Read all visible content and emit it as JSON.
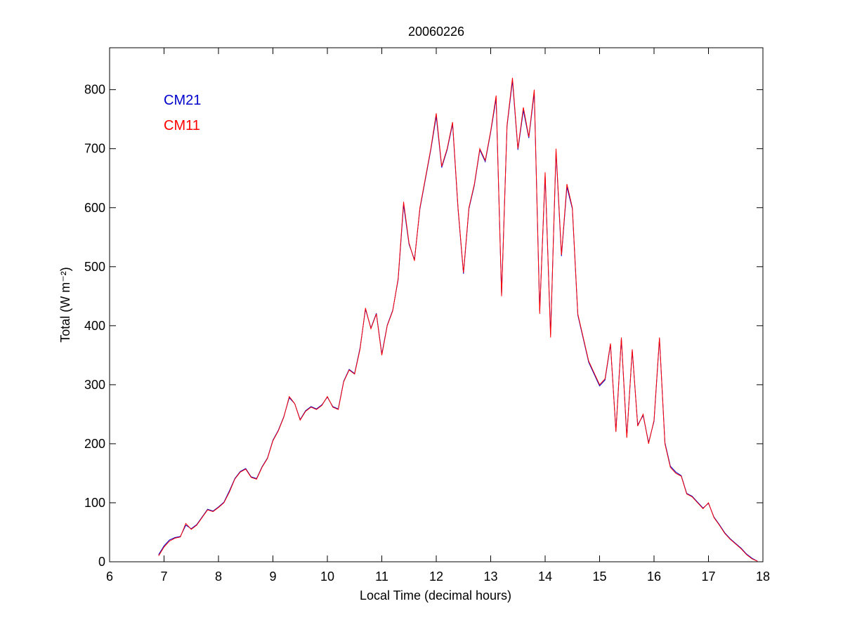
{
  "chart_data": {
    "type": "line",
    "title": "20060226",
    "xlabel": "Local Time (decimal hours)",
    "ylabel": "Total (W m⁻²)",
    "x": [
      6.9,
      7.0,
      7.1,
      7.2,
      7.3,
      7.4,
      7.5,
      7.6,
      7.7,
      7.8,
      7.9,
      8.0,
      8.1,
      8.2,
      8.3,
      8.4,
      8.5,
      8.6,
      8.7,
      8.8,
      8.9,
      9.0,
      9.1,
      9.2,
      9.3,
      9.4,
      9.5,
      9.6,
      9.7,
      9.8,
      9.9,
      10.0,
      10.1,
      10.2,
      10.3,
      10.4,
      10.5,
      10.6,
      10.7,
      10.8,
      10.9,
      11.0,
      11.1,
      11.2,
      11.3,
      11.4,
      11.5,
      11.6,
      11.7,
      11.8,
      11.9,
      12.0,
      12.1,
      12.2,
      12.3,
      12.4,
      12.5,
      12.6,
      12.7,
      12.8,
      12.9,
      13.0,
      13.1,
      13.2,
      13.3,
      13.4,
      13.5,
      13.6,
      13.7,
      13.8,
      13.9,
      14.0,
      14.1,
      14.2,
      14.3,
      14.4,
      14.5,
      14.6,
      14.7,
      14.8,
      14.9,
      15.0,
      15.1,
      15.2,
      15.3,
      15.4,
      15.5,
      15.6,
      15.7,
      15.8,
      15.9,
      16.0,
      16.1,
      16.2,
      16.3,
      16.4,
      16.5,
      16.6,
      16.7,
      16.8,
      16.9,
      17.0,
      17.1,
      17.2,
      17.3,
      17.4,
      17.5,
      17.6,
      17.7,
      17.8,
      17.9
    ],
    "series": [
      {
        "name": "CM21",
        "color": "#0000cc",
        "values": [
          12,
          27,
          37,
          41,
          43,
          62,
          56,
          63,
          76,
          89,
          86,
          93,
          101,
          120,
          141,
          153,
          158,
          144,
          141,
          161,
          176,
          206,
          223,
          246,
          278,
          268,
          241,
          256,
          263,
          259,
          266,
          279,
          263,
          259,
          306,
          326,
          319,
          362,
          428,
          396,
          421,
          352,
          401,
          426,
          478,
          605,
          538,
          512,
          598,
          648,
          698,
          755,
          668,
          698,
          742,
          598,
          488,
          598,
          638,
          698,
          678,
          728,
          785,
          452,
          738,
          815,
          698,
          765,
          718,
          795,
          425,
          655,
          385,
          695,
          518,
          635,
          598,
          418,
          378,
          338,
          318,
          298,
          308,
          368,
          222,
          378,
          212,
          358,
          232,
          248,
          202,
          238,
          378,
          202,
          162,
          152,
          146,
          116,
          111,
          101,
          91,
          99,
          76,
          63,
          49,
          39,
          31,
          23,
          13,
          6,
          1
        ]
      },
      {
        "name": "CM11",
        "color": "#ff0000",
        "values": [
          10,
          25,
          35,
          40,
          42,
          65,
          55,
          62,
          75,
          88,
          85,
          92,
          100,
          118,
          140,
          152,
          157,
          143,
          140,
          160,
          175,
          205,
          222,
          245,
          280,
          268,
          240,
          255,
          262,
          258,
          265,
          280,
          262,
          258,
          305,
          325,
          318,
          360,
          430,
          395,
          420,
          350,
          400,
          425,
          480,
          610,
          540,
          510,
          600,
          650,
          700,
          760,
          670,
          700,
          745,
          600,
          490,
          600,
          640,
          700,
          680,
          730,
          790,
          450,
          740,
          820,
          700,
          770,
          720,
          800,
          420,
          660,
          380,
          700,
          520,
          640,
          600,
          420,
          380,
          340,
          320,
          300,
          310,
          370,
          220,
          380,
          210,
          360,
          230,
          250,
          200,
          240,
          380,
          200,
          160,
          150,
          145,
          115,
          110,
          100,
          90,
          100,
          75,
          62,
          48,
          38,
          30,
          22,
          12,
          5,
          1
        ]
      }
    ],
    "xlim": [
      6,
      18
    ],
    "ylim": [
      0,
      871
    ],
    "xticks": [
      6,
      7,
      8,
      9,
      10,
      11,
      12,
      13,
      14,
      15,
      16,
      17,
      18
    ],
    "yticks": [
      0,
      100,
      200,
      300,
      400,
      500,
      600,
      700,
      800
    ]
  }
}
